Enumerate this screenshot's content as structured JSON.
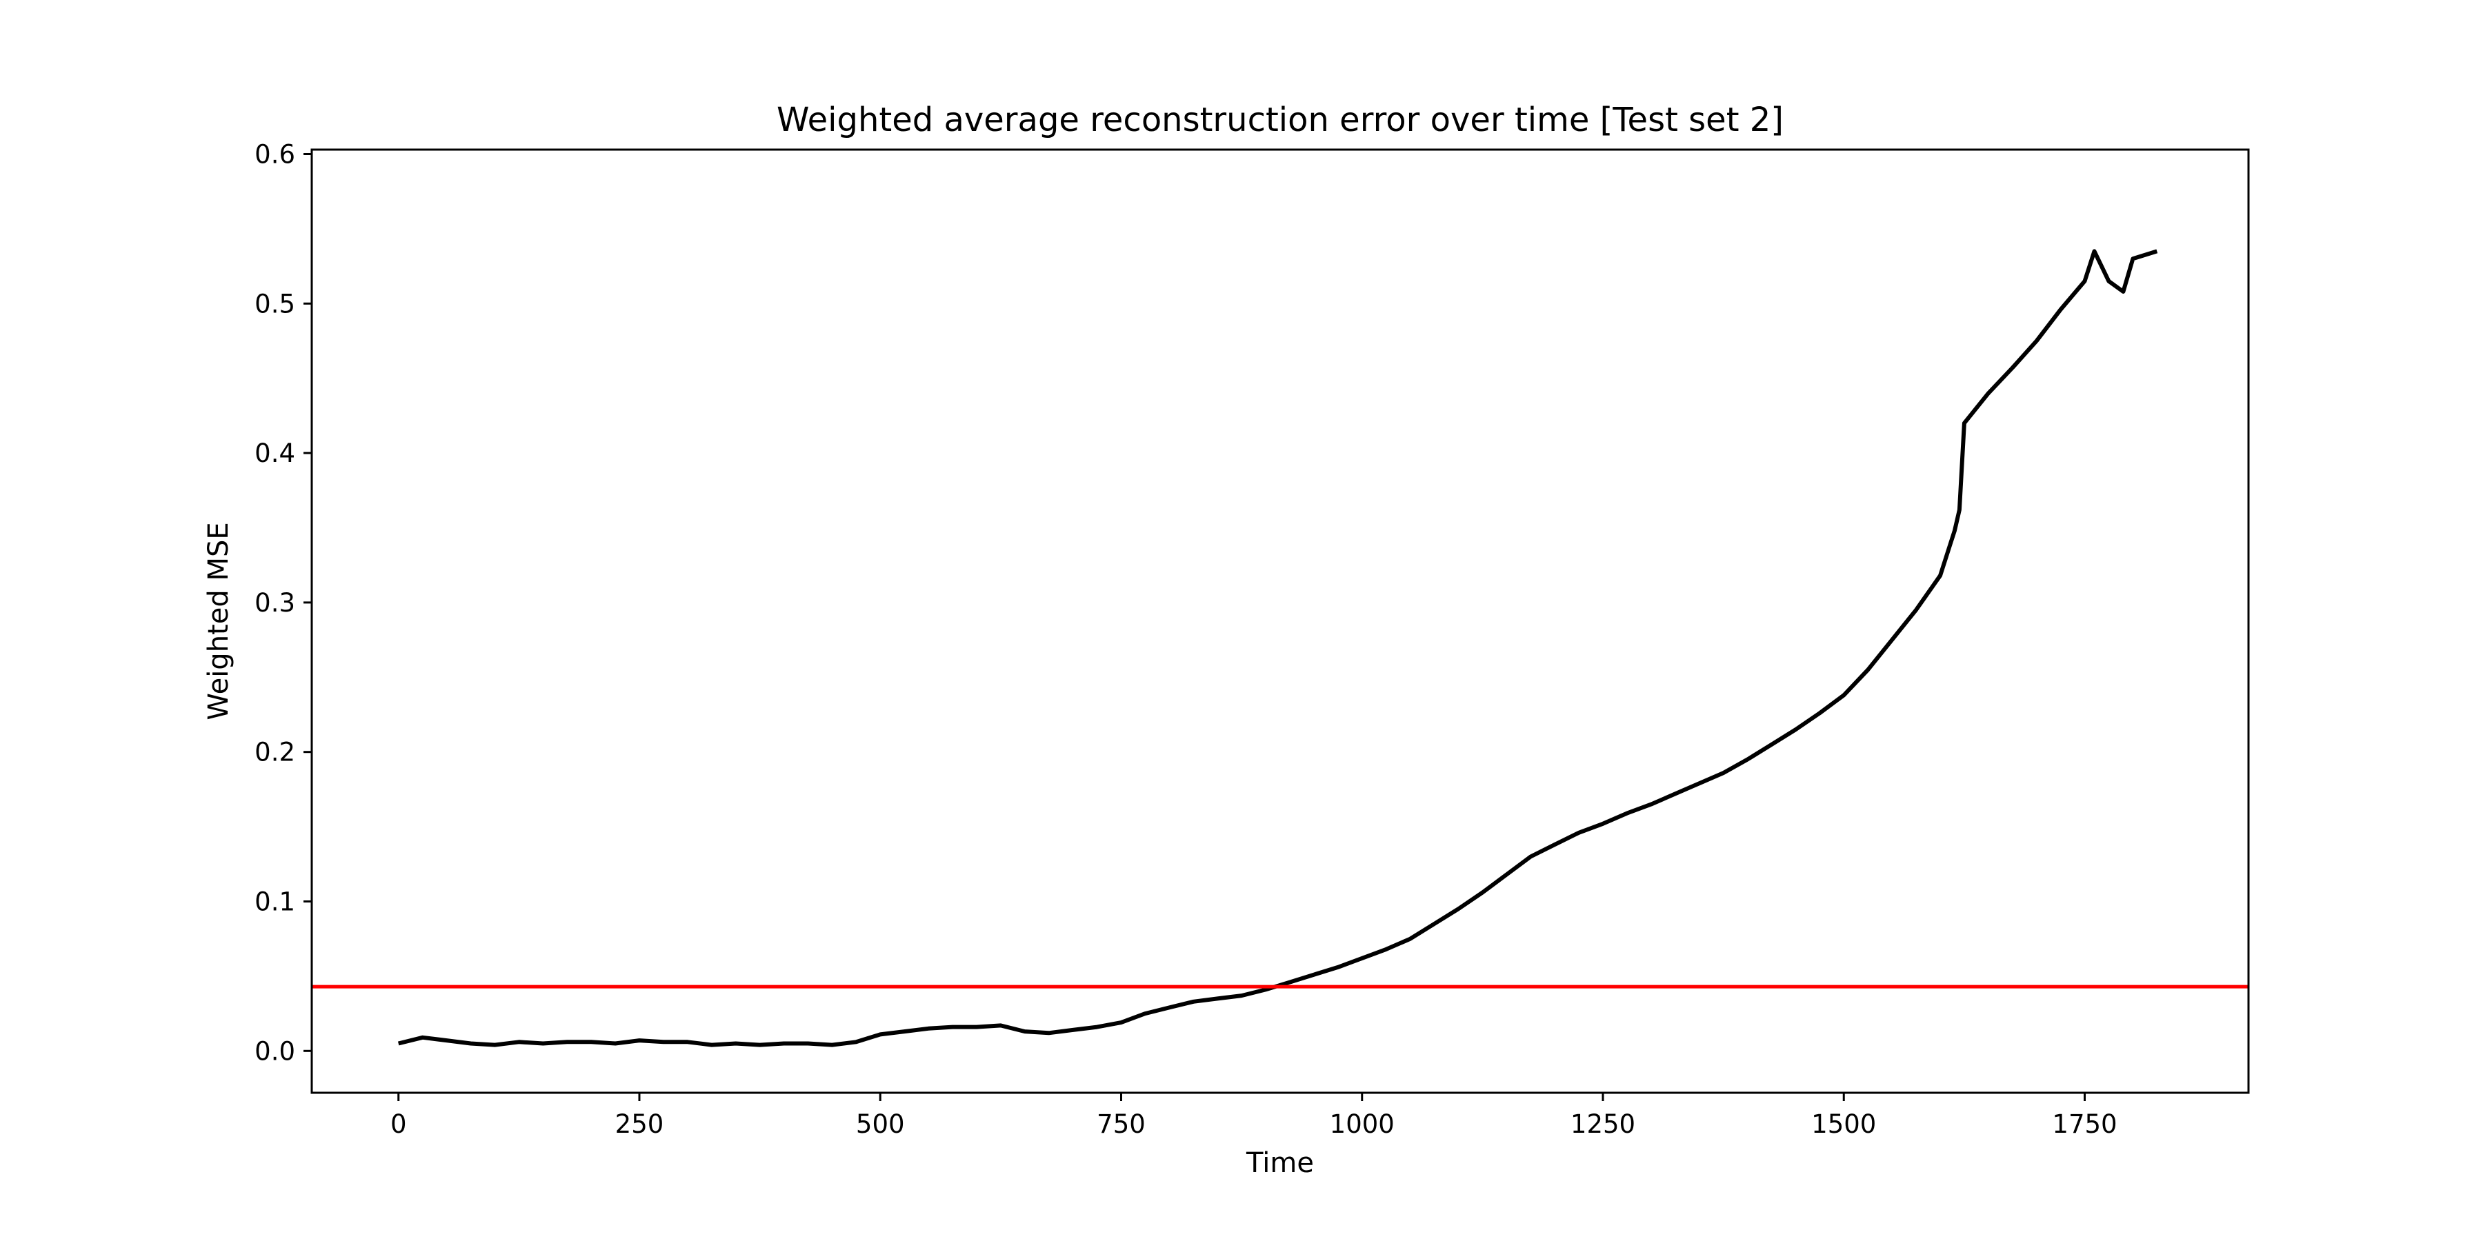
{
  "chart_data": {
    "type": "line",
    "title": "Weighted average reconstruction error over time [Test set 2]",
    "xlabel": "Time",
    "ylabel": "Weighted MSE",
    "xlim": [
      -90,
      1920
    ],
    "ylim": [
      -0.028,
      0.603
    ],
    "x_ticks": [
      0,
      250,
      500,
      750,
      1000,
      1250,
      1500,
      1750
    ],
    "x_tick_labels": [
      "0",
      "250",
      "500",
      "750",
      "1000",
      "1250",
      "1500",
      "1750"
    ],
    "y_ticks": [
      0.0,
      0.1,
      0.2,
      0.3,
      0.4,
      0.5,
      0.6
    ],
    "y_tick_labels": [
      "0.0",
      "0.1",
      "0.2",
      "0.3",
      "0.4",
      "0.5",
      "0.6"
    ],
    "grid": false,
    "legend": "none",
    "threshold": {
      "y": 0.043,
      "color": "#ff0000"
    },
    "series": [
      {
        "color": "#000000",
        "x": [
          0,
          25,
          50,
          75,
          100,
          125,
          150,
          175,
          200,
          225,
          250,
          275,
          300,
          325,
          350,
          375,
          400,
          425,
          450,
          475,
          500,
          525,
          550,
          575,
          600,
          625,
          650,
          675,
          700,
          725,
          750,
          775,
          800,
          825,
          850,
          875,
          900,
          925,
          950,
          975,
          1000,
          1025,
          1050,
          1075,
          1100,
          1125,
          1150,
          1175,
          1200,
          1225,
          1250,
          1275,
          1300,
          1325,
          1350,
          1375,
          1400,
          1425,
          1450,
          1475,
          1500,
          1525,
          1550,
          1575,
          1600,
          1610,
          1615,
          1620,
          1625,
          1650,
          1675,
          1700,
          1725,
          1750,
          1760,
          1775,
          1790,
          1800,
          1825
        ],
        "y": [
          0.005,
          0.009,
          0.007,
          0.005,
          0.004,
          0.006,
          0.005,
          0.006,
          0.006,
          0.005,
          0.007,
          0.006,
          0.006,
          0.004,
          0.005,
          0.004,
          0.005,
          0.005,
          0.004,
          0.006,
          0.011,
          0.013,
          0.015,
          0.016,
          0.016,
          0.017,
          0.013,
          0.012,
          0.014,
          0.016,
          0.019,
          0.025,
          0.029,
          0.033,
          0.035,
          0.037,
          0.041,
          0.046,
          0.051,
          0.056,
          0.062,
          0.068,
          0.075,
          0.085,
          0.095,
          0.106,
          0.118,
          0.13,
          0.138,
          0.146,
          0.152,
          0.159,
          0.165,
          0.172,
          0.179,
          0.186,
          0.195,
          0.205,
          0.215,
          0.226,
          0.238,
          0.255,
          0.275,
          0.295,
          0.318,
          0.338,
          0.348,
          0.362,
          0.42,
          0.44,
          0.457,
          0.475,
          0.496,
          0.515,
          0.535,
          0.515,
          0.508,
          0.53,
          0.535
        ]
      }
    ]
  }
}
